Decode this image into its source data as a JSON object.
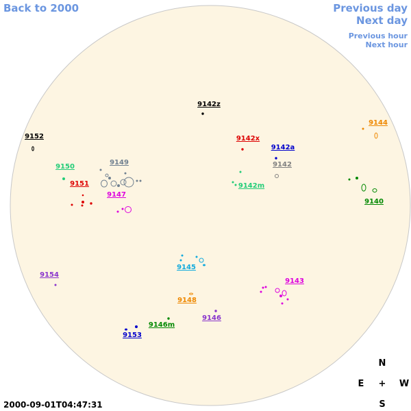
{
  "nav": {
    "back": "Back to 2000",
    "previous_day": "Previous day",
    "next_day": "Next day",
    "previous_hour": "Previous hour",
    "next_hour": "Next hour"
  },
  "regions": [
    {
      "label": "9142z",
      "color": "#000000"
    },
    {
      "label": "9152",
      "color": "#000000"
    },
    {
      "label": "9144",
      "color": "#ee8800"
    },
    {
      "label": "9142x",
      "color": "#dd0000"
    },
    {
      "label": "9142a",
      "color": "#0000cc"
    },
    {
      "label": "9150",
      "color": "#22cc77"
    },
    {
      "label": "9149",
      "color": "#708090"
    },
    {
      "label": "9142",
      "color": "#808080"
    },
    {
      "label": "9151",
      "color": "#dd0000"
    },
    {
      "label": "9142m",
      "color": "#22cc77"
    },
    {
      "label": "9140",
      "color": "#008800"
    },
    {
      "label": "9147",
      "color": "#dd00dd"
    },
    {
      "label": "9145",
      "color": "#11aadd"
    },
    {
      "label": "9143",
      "color": "#dd00dd"
    },
    {
      "label": "9154",
      "color": "#8833cc"
    },
    {
      "label": "9148",
      "color": "#ee8800"
    },
    {
      "label": "9146",
      "color": "#8833cc"
    },
    {
      "label": "9146m",
      "color": "#008800"
    },
    {
      "label": "9153",
      "color": "#0000cc"
    }
  ],
  "compass": {
    "north": "N",
    "east": "E",
    "center": "+",
    "west": "W",
    "south": "S"
  },
  "timestamp": "2000-09-01T04:47:31"
}
